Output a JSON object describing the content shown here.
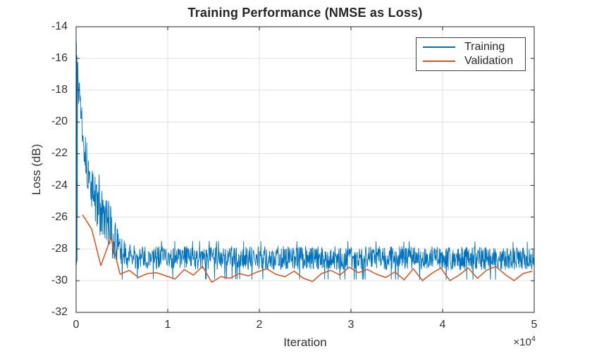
{
  "chart_data": {
    "type": "line",
    "title": "Training Performance (NMSE as Loss)",
    "xlabel": "Iteration",
    "ylabel": "Loss (dB)",
    "xlim": [
      0,
      50000
    ],
    "ylim": [
      -32,
      -14
    ],
    "grid": true,
    "box": true,
    "tick_direction": "in",
    "axes_color": "#262626",
    "grid_color": "#e0e0e0",
    "xticks": {
      "values": [
        0,
        10000,
        20000,
        30000,
        40000,
        50000
      ],
      "labels": [
        "0",
        "1",
        "2",
        "3",
        "4",
        "5"
      ],
      "multiplier": {
        "base": "×10",
        "exponent": "4"
      }
    },
    "yticks": {
      "values": [
        -14,
        -16,
        -18,
        -20,
        -22,
        -24,
        -26,
        -28,
        -30,
        -32
      ],
      "labels": [
        "-14",
        "-16",
        "-18",
        "-20",
        "-22",
        "-24",
        "-26",
        "-28",
        "-30",
        "-32"
      ]
    },
    "legend": {
      "position": "northeast",
      "entries": [
        {
          "label": "Training",
          "color": "#0072BD"
        },
        {
          "label": "Validation",
          "color": "#D95319"
        }
      ]
    },
    "series": [
      {
        "name": "Training",
        "render": "noisy-line",
        "color": "#0072BD",
        "line_width": 0.9,
        "head_points": [
          [
            0,
            -14.2
          ],
          [
            15,
            -28.5
          ],
          [
            30,
            -15.0
          ],
          [
            45,
            -29.0
          ],
          [
            60,
            -16.5
          ],
          [
            75,
            -27.5
          ],
          [
            90,
            -15.8
          ],
          [
            105,
            -28.8
          ],
          [
            120,
            -17.5
          ],
          [
            135,
            -26.0
          ],
          [
            150,
            -16.2
          ]
        ],
        "trend_mean_amp": [
          [
            150,
            -16.2,
            0.9
          ],
          [
            400,
            -18.2,
            1.1
          ],
          [
            700,
            -20.2,
            1.2
          ],
          [
            1000,
            -22.0,
            1.3
          ],
          [
            1400,
            -23.6,
            1.4
          ],
          [
            1800,
            -24.4,
            1.5
          ],
          [
            2300,
            -25.2,
            1.5
          ],
          [
            2800,
            -25.9,
            1.6
          ],
          [
            3300,
            -26.2,
            1.7
          ],
          [
            3800,
            -26.9,
            1.6
          ],
          [
            4300,
            -27.6,
            1.3
          ],
          [
            4800,
            -28.15,
            1.0
          ],
          [
            5500,
            -28.45,
            0.8
          ],
          [
            7000,
            -28.55,
            0.75
          ],
          [
            50000,
            -28.6,
            0.75
          ]
        ],
        "noise_seed": 13,
        "samples": 1380
      },
      {
        "name": "Validation",
        "render": "line",
        "color": "#D95319",
        "line_width": 1.5,
        "points": [
          [
            700,
            -25.85
          ],
          [
            1700,
            -26.75
          ],
          [
            2700,
            -29.05
          ],
          [
            3800,
            -27.3
          ],
          [
            4800,
            -29.6
          ],
          [
            5800,
            -29.35
          ],
          [
            6800,
            -29.8
          ],
          [
            7800,
            -29.55
          ],
          [
            8800,
            -29.5
          ],
          [
            9800,
            -29.7
          ],
          [
            10800,
            -29.9
          ],
          [
            11800,
            -29.3
          ],
          [
            12800,
            -29.65
          ],
          [
            13800,
            -29.1
          ],
          [
            14800,
            -30.1
          ],
          [
            15800,
            -29.75
          ],
          [
            16800,
            -29.85
          ],
          [
            17800,
            -29.55
          ],
          [
            18800,
            -29.7
          ],
          [
            19800,
            -29.45
          ],
          [
            20800,
            -29.25
          ],
          [
            21800,
            -29.6
          ],
          [
            22800,
            -29.75
          ],
          [
            23800,
            -29.4
          ],
          [
            24800,
            -29.85
          ],
          [
            25800,
            -30.05
          ],
          [
            26800,
            -29.55
          ],
          [
            27800,
            -29.35
          ],
          [
            28800,
            -29.65
          ],
          [
            29800,
            -29.15
          ],
          [
            30800,
            -29.5
          ],
          [
            31800,
            -29.3
          ],
          [
            32800,
            -29.6
          ],
          [
            33800,
            -29.8
          ],
          [
            34800,
            -29.45
          ],
          [
            35800,
            -29.95
          ],
          [
            36800,
            -29.25
          ],
          [
            37800,
            -30.0
          ],
          [
            38800,
            -29.55
          ],
          [
            39800,
            -29.2
          ],
          [
            40800,
            -30.0
          ],
          [
            41800,
            -29.65
          ],
          [
            42800,
            -29.2
          ],
          [
            43800,
            -29.85
          ],
          [
            44800,
            -29.35
          ],
          [
            45800,
            -29.1
          ],
          [
            46800,
            -29.6
          ],
          [
            47800,
            -30.0
          ],
          [
            48800,
            -29.55
          ],
          [
            49800,
            -29.4
          ]
        ]
      }
    ]
  }
}
